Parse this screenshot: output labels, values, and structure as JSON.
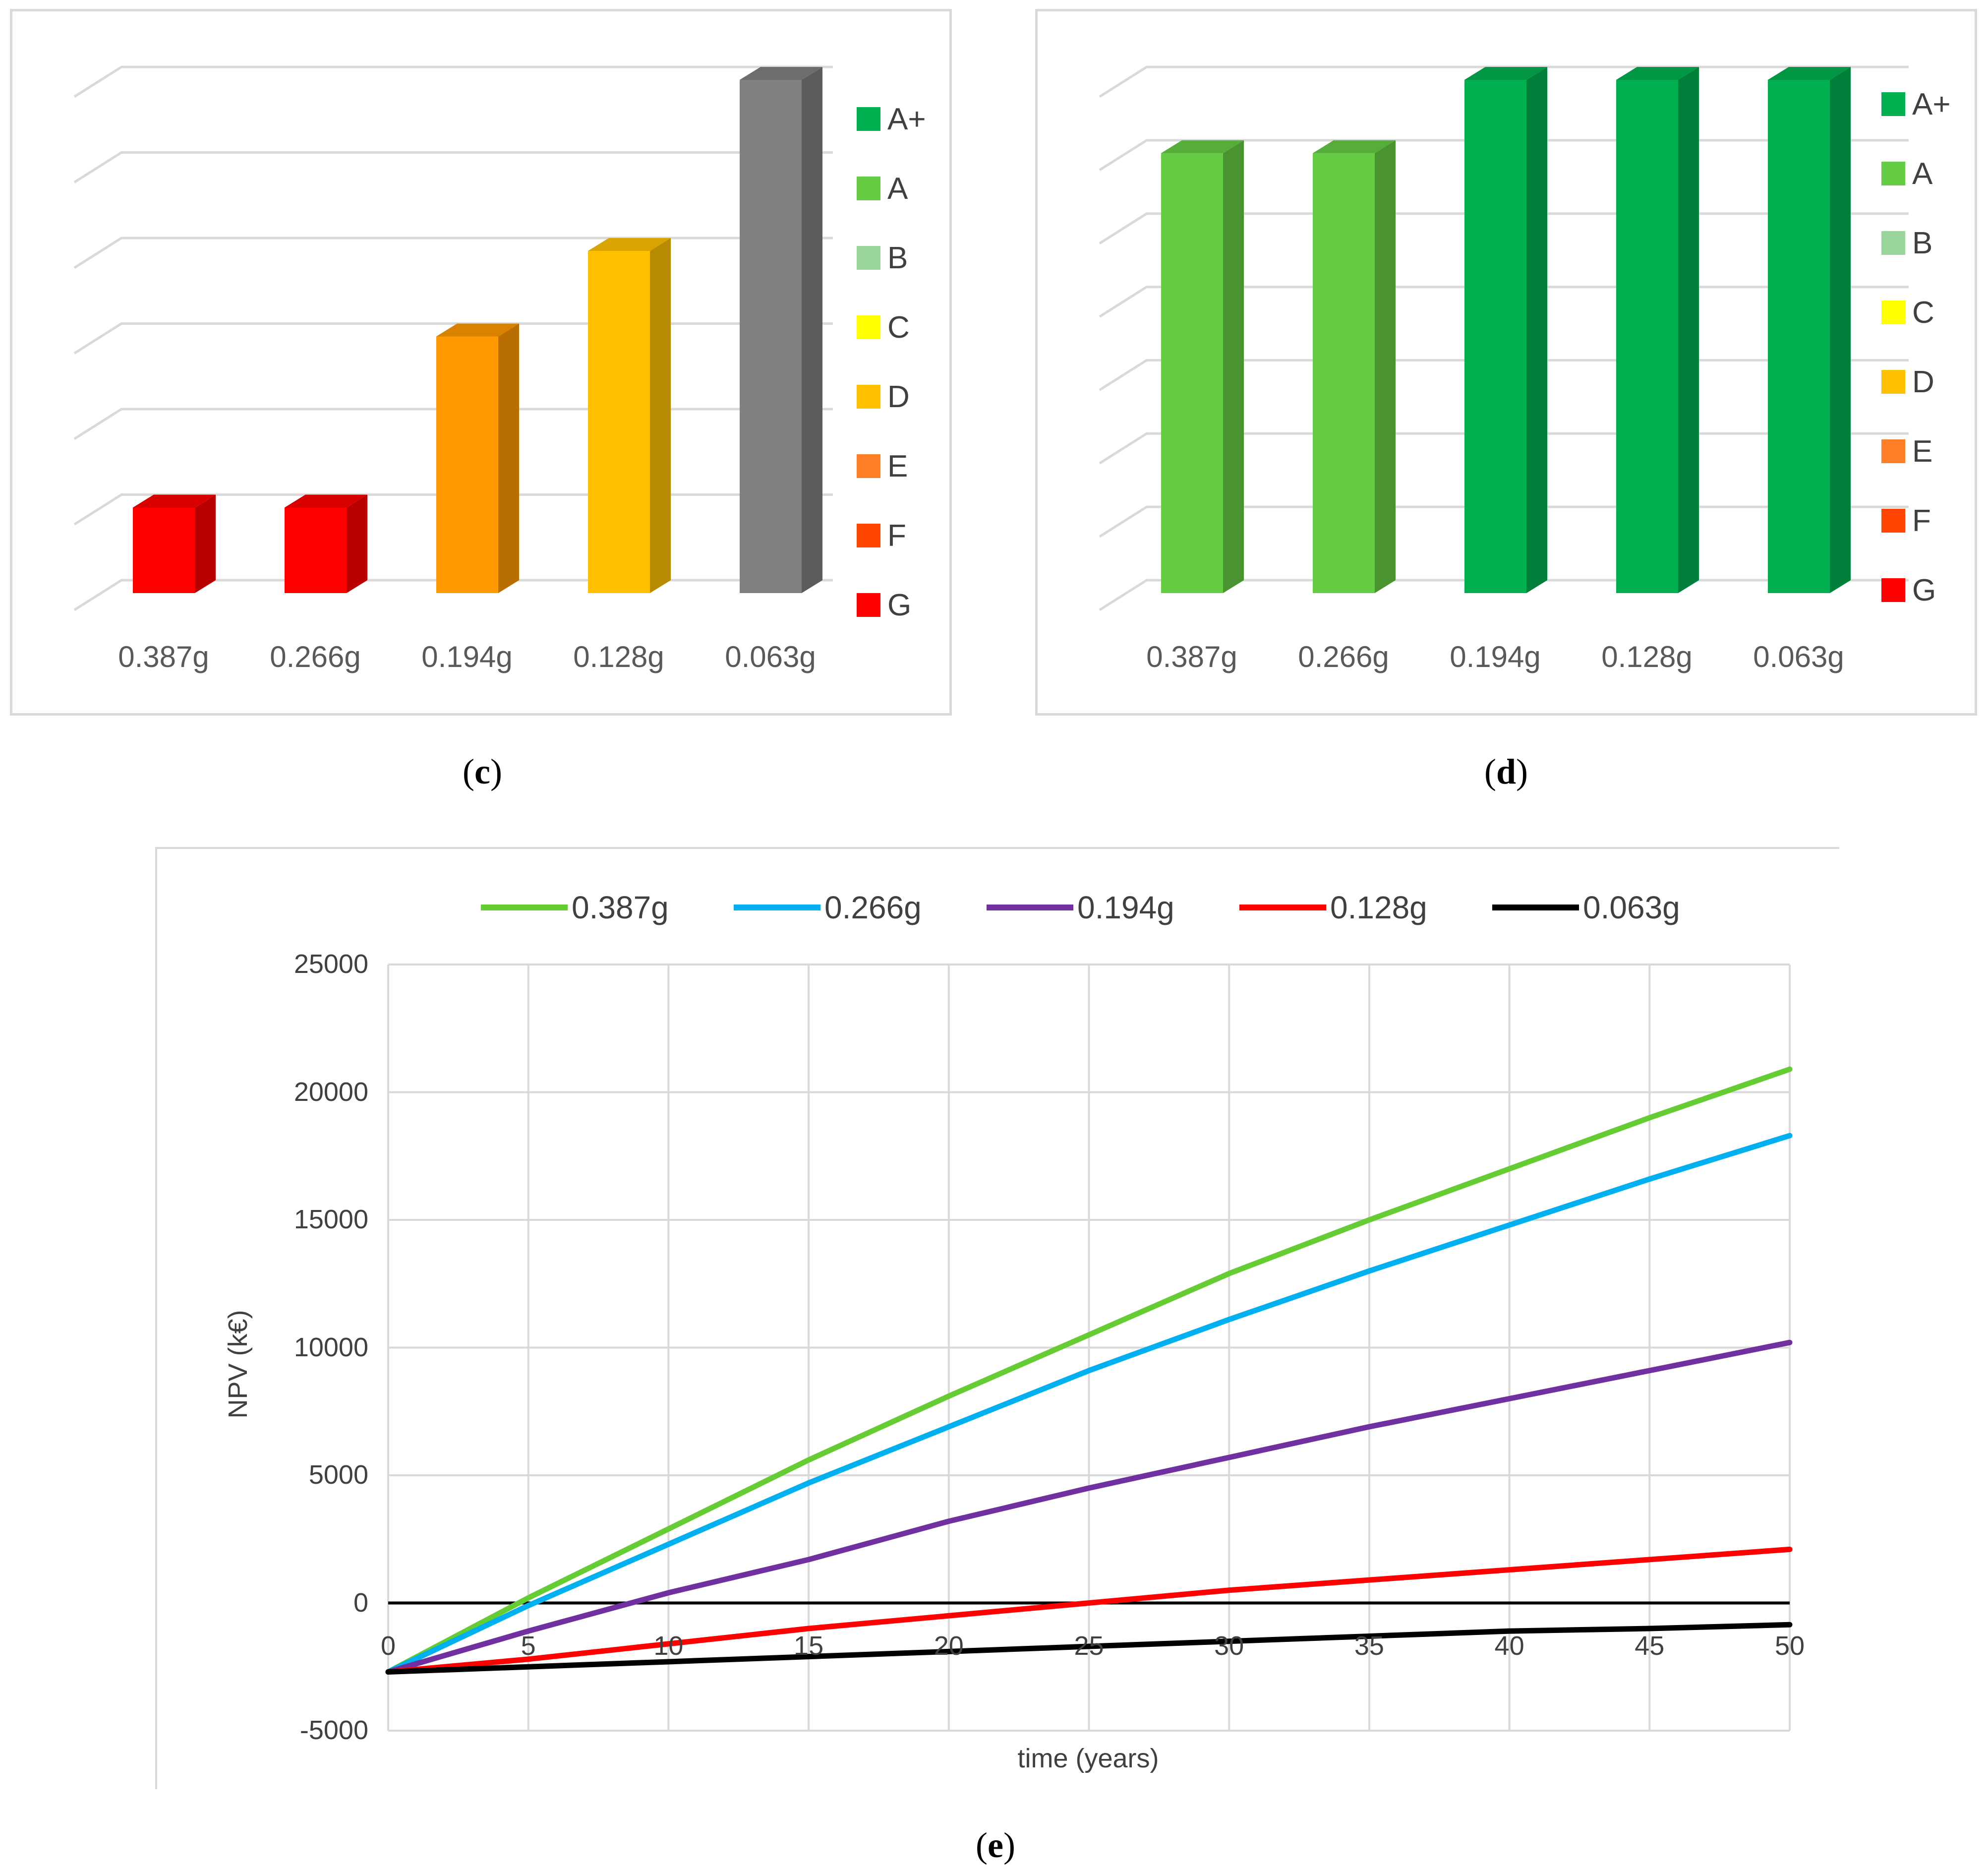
{
  "panel_c": {
    "caption_letter": "c",
    "categories": [
      "0.387g",
      "0.266g",
      "0.194g",
      "0.128g",
      "0.063g"
    ],
    "legend": [
      {
        "label": "A+",
        "color": "#00b050"
      },
      {
        "label": "A",
        "color": "#66cc44"
      },
      {
        "label": "B",
        "color": "#99d599"
      },
      {
        "label": "C",
        "color": "#ffff00"
      },
      {
        "label": "D",
        "color": "#ffc000"
      },
      {
        "label": "E",
        "color": "#ff7f27"
      },
      {
        "label": "F",
        "color": "#ff4500"
      },
      {
        "label": "G",
        "color": "#ff0000"
      }
    ]
  },
  "panel_d": {
    "caption_letter": "d",
    "categories": [
      "0.387g",
      "0.266g",
      "0.194g",
      "0.128g",
      "0.063g"
    ],
    "legend": [
      {
        "label": "A+",
        "color": "#00b050"
      },
      {
        "label": "A",
        "color": "#66cc44"
      },
      {
        "label": "B",
        "color": "#99d599"
      },
      {
        "label": "C",
        "color": "#ffff00"
      },
      {
        "label": "D",
        "color": "#ffc000"
      },
      {
        "label": "E",
        "color": "#ff7f27"
      },
      {
        "label": "F",
        "color": "#ff4500"
      },
      {
        "label": "G",
        "color": "#ff0000"
      }
    ]
  },
  "panel_e": {
    "caption_letter": "e",
    "ylabel": "NPV (k€)",
    "xlabel": "time (years)",
    "yticks": [
      "25000",
      "20000",
      "15000",
      "10000",
      "5000",
      "0",
      "-5000"
    ],
    "xticks": [
      "0",
      "5",
      "10",
      "15",
      "20",
      "25",
      "30",
      "35",
      "40",
      "45",
      "50"
    ]
  },
  "chart_data": [
    {
      "type": "bar",
      "title": "(c)",
      "categories": [
        "0.387g",
        "0.266g",
        "0.194g",
        "0.128g",
        "0.063g"
      ],
      "values": [
        1,
        1,
        3,
        4,
        6
      ],
      "value_unit": "gridline levels",
      "bar_colors": [
        "#ff0000",
        "#ff0000",
        "#ff9900",
        "#ffc000",
        "#808080"
      ],
      "legend_title": "",
      "legend": [
        "A+",
        "A",
        "B",
        "C",
        "D",
        "E",
        "F",
        "G"
      ],
      "grid": true,
      "ylim": [
        0,
        6
      ]
    },
    {
      "type": "bar",
      "title": "(d)",
      "categories": [
        "0.387g",
        "0.266g",
        "0.194g",
        "0.128g",
        "0.063g"
      ],
      "values": [
        6,
        6,
        7,
        7,
        7
      ],
      "value_unit": "gridline levels",
      "bar_colors": [
        "#66cc44",
        "#66cc44",
        "#00b050",
        "#00b050",
        "#00b050"
      ],
      "legend": [
        "A+",
        "A",
        "B",
        "C",
        "D",
        "E",
        "F",
        "G"
      ],
      "grid": true,
      "ylim": [
        0,
        7
      ]
    },
    {
      "type": "line",
      "title": "(e)",
      "xlabel": "time (years)",
      "ylabel": "NPV (k€)",
      "xlim": [
        0,
        50
      ],
      "ylim": [
        -5000,
        25000
      ],
      "legend_position": "top",
      "x": [
        0,
        5,
        10,
        15,
        20,
        25,
        30,
        35,
        40,
        45,
        50
      ],
      "series": [
        {
          "name": "0.387g",
          "color": "#66cc33",
          "values": [
            -2700,
            200,
            2900,
            5600,
            8100,
            10500,
            12900,
            15000,
            17000,
            19000,
            20900
          ]
        },
        {
          "name": "0.266g",
          "color": "#00b0f0",
          "values": [
            -2700,
            -100,
            2300,
            4700,
            6900,
            9100,
            11100,
            13000,
            14800,
            16600,
            18300
          ]
        },
        {
          "name": "0.194g",
          "color": "#7030a0",
          "values": [
            -2700,
            -1100,
            400,
            1700,
            3200,
            4500,
            5700,
            6900,
            8000,
            9100,
            10200
          ]
        },
        {
          "name": "0.128g",
          "color": "#ff0000",
          "values": [
            -2700,
            -2200,
            -1600,
            -1000,
            -500,
            0,
            500,
            900,
            1300,
            1700,
            2100
          ]
        },
        {
          "name": "0.063g",
          "color": "#000000",
          "values": [
            -2700,
            -2500,
            -2300,
            -2100,
            -1900,
            -1700,
            -1500,
            -1300,
            -1100,
            -1000,
            -850
          ]
        }
      ],
      "reference_line": 0
    }
  ]
}
